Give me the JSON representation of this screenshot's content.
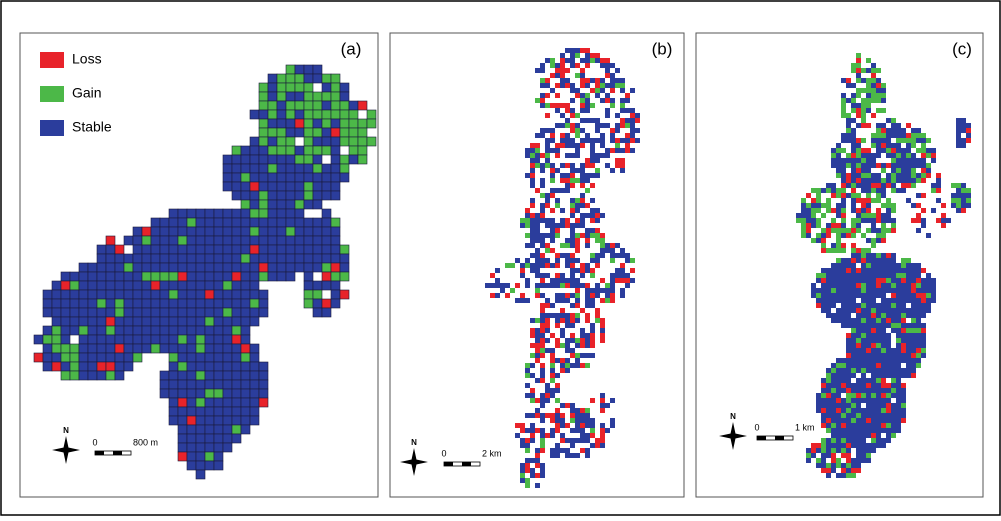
{
  "legend": {
    "items": [
      {
        "label": "Loss",
        "color": "#e8232a"
      },
      {
        "label": "Gain",
        "color": "#4cb848"
      },
      {
        "label": "Stable",
        "color": "#2b3d9c"
      }
    ]
  },
  "north_label": "N",
  "panels": [
    {
      "label": "(a)",
      "scale": {
        "start": "0",
        "end": "800 m"
      }
    },
    {
      "label": "(b)",
      "scale": {
        "start": "0",
        "end": "2 km"
      }
    },
    {
      "label": "(c)",
      "scale": {
        "start": "0",
        "end": "1 km"
      }
    }
  ]
}
